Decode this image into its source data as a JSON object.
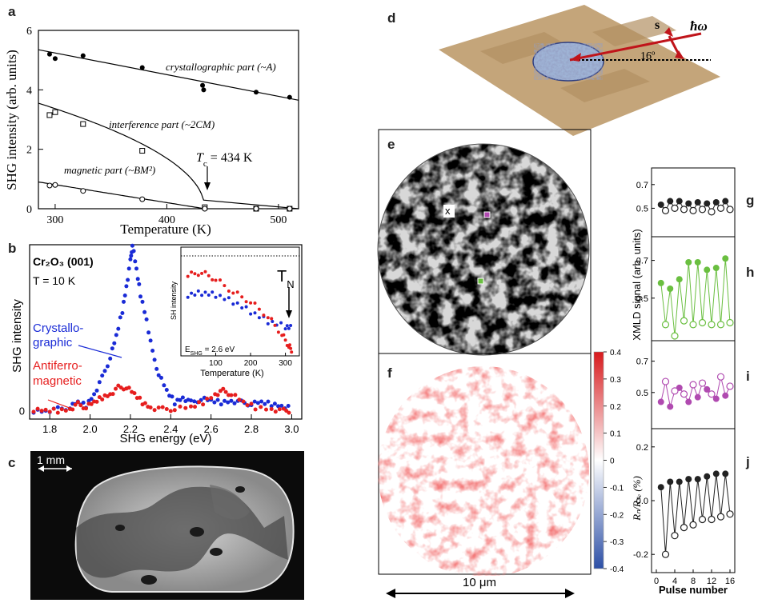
{
  "panel_labels": {
    "a": "a",
    "b": "b",
    "c": "c",
    "d": "d",
    "e": "e",
    "f": "f",
    "g": "g",
    "h": "h",
    "i": "i",
    "j": "j"
  },
  "chart_data": [
    {
      "panel": "a",
      "type": "scatter",
      "xlabel": "Temperature  (K)",
      "ylabel": "SHG intensity  (arb. units)",
      "xlim": [
        285,
        518
      ],
      "ylim": [
        0,
        6
      ],
      "xticks": [
        "300",
        "400",
        "500"
      ],
      "yticks": [
        "0",
        "2",
        "4",
        "6"
      ],
      "annotations": {
        "crys": "crystallographic part (~A)",
        "interf": "interference part (~2CM)",
        "magn": "magnetic part (~BM²)",
        "tc": "T",
        "tc_sub": "c",
        "tc_val": " = 434 K"
      },
      "series": [
        {
          "points": [
            [
              295,
              5.2
            ],
            [
              300,
              5.05
            ],
            [
              325,
              5.15
            ],
            [
              378,
              4.75
            ],
            [
              432,
              4.15
            ],
            [
              433,
              4.0
            ],
            [
              480,
              3.92
            ],
            [
              510,
              3.75
            ]
          ]
        },
        {
          "points": [
            [
              295,
              3.15
            ],
            [
              300,
              3.25
            ],
            [
              325,
              2.85
            ],
            [
              378,
              1.95
            ],
            [
              434,
              0.05
            ],
            [
              480,
              0.0
            ],
            [
              510,
              0.0
            ]
          ]
        },
        {
          "points": [
            [
              295,
              0.78
            ],
            [
              300,
              0.8
            ],
            [
              325,
              0.6
            ],
            [
              378,
              0.32
            ],
            [
              434,
              0.0
            ],
            [
              480,
              0.0
            ],
            [
              510,
              0.0
            ]
          ]
        }
      ]
    },
    {
      "panel": "b",
      "type": "scatter",
      "xlabel": "SHG energy  (eV)",
      "ylabel": "SHG intensity",
      "xlim": [
        1.7,
        3.05
      ],
      "ylim": [
        -0.05,
        1.0
      ],
      "xticks": [
        "1.8",
        "2.0",
        "2.2",
        "2.4",
        "2.6",
        "2.8",
        "3.0"
      ],
      "yticks": [
        "0"
      ],
      "text": {
        "material": "Cr₂O₃ (001)",
        "temp": "T = 10 K",
        "cryst1": "Crystallo-",
        "cryst2": "graphic",
        "anti1": "Antiferro-",
        "anti2": "magnetic"
      },
      "series": [
        {
          "name": "Crystallographic",
          "color": "#1a2bd6",
          "points": [
            [
              1.72,
              0.0
            ],
            [
              1.78,
              0.0
            ],
            [
              1.84,
              0.01
            ],
            [
              1.9,
              0.02
            ],
            [
              1.94,
              0.05
            ],
            [
              1.98,
              0.03
            ],
            [
              2.02,
              0.1
            ],
            [
              2.06,
              0.2
            ],
            [
              2.1,
              0.32
            ],
            [
              2.13,
              0.45
            ],
            [
              2.16,
              0.6
            ],
            [
              2.18,
              0.75
            ],
            [
              2.2,
              0.9
            ],
            [
              2.21,
              1.0
            ],
            [
              2.23,
              0.85
            ],
            [
              2.25,
              0.7
            ],
            [
              2.28,
              0.55
            ],
            [
              2.31,
              0.35
            ],
            [
              2.34,
              0.22
            ],
            [
              2.38,
              0.12
            ],
            [
              2.42,
              0.05
            ],
            [
              2.46,
              0.08
            ],
            [
              2.5,
              0.05
            ],
            [
              2.55,
              0.07
            ],
            [
              2.6,
              0.06
            ],
            [
              2.65,
              0.05
            ],
            [
              2.7,
              0.06
            ],
            [
              2.75,
              0.05
            ],
            [
              2.8,
              0.04
            ],
            [
              2.85,
              0.05
            ],
            [
              2.9,
              0.04
            ],
            [
              2.95,
              0.03
            ],
            [
              3.0,
              0.02
            ]
          ]
        },
        {
          "name": "Antiferromagnetic",
          "color": "#e61e1e",
          "points": [
            [
              1.72,
              0.0
            ],
            [
              1.78,
              0.0
            ],
            [
              1.84,
              0.0
            ],
            [
              1.9,
              0.01
            ],
            [
              1.94,
              0.04
            ],
            [
              1.98,
              0.02
            ],
            [
              2.02,
              0.05
            ],
            [
              2.06,
              0.08
            ],
            [
              2.1,
              0.1
            ],
            [
              2.14,
              0.14
            ],
            [
              2.18,
              0.14
            ],
            [
              2.22,
              0.1
            ],
            [
              2.26,
              0.05
            ],
            [
              2.3,
              0.02
            ],
            [
              2.36,
              0.01
            ],
            [
              2.42,
              0.01
            ],
            [
              2.5,
              0.02
            ],
            [
              2.56,
              0.05
            ],
            [
              2.62,
              0.1
            ],
            [
              2.66,
              0.12
            ],
            [
              2.7,
              0.1
            ],
            [
              2.76,
              0.05
            ],
            [
              2.82,
              0.02
            ],
            [
              2.9,
              0.01
            ],
            [
              2.96,
              0.0
            ],
            [
              3.0,
              0.0
            ]
          ]
        }
      ],
      "inset": {
        "xlabel": "Temperature (K)",
        "ylabel": "SH intensity",
        "xticks": [
          "100",
          "200",
          "300"
        ],
        "xlim": [
          0,
          340
        ],
        "ylim": [
          0,
          1
        ],
        "note": "E",
        "note_sub": "SHG",
        "note_val": " = 2.6 eV",
        "tn": "T",
        "tn_sub": "N",
        "series": [
          {
            "color": "#1a2bd6",
            "points": [
              [
                20,
                0.62
              ],
              [
                60,
                0.64
              ],
              [
                100,
                0.62
              ],
              [
                150,
                0.55
              ],
              [
                200,
                0.45
              ],
              [
                250,
                0.35
              ],
              [
                300,
                0.3
              ],
              [
                320,
                0.28
              ]
            ]
          },
          {
            "color": "#e61e1e",
            "points": [
              [
                20,
                0.82
              ],
              [
                60,
                0.85
              ],
              [
                100,
                0.78
              ],
              [
                150,
                0.65
              ],
              [
                200,
                0.55
              ],
              [
                250,
                0.4
              ],
              [
                290,
                0.22
              ],
              [
                310,
                0.1
              ],
              [
                320,
                0.05
              ]
            ]
          }
        ]
      }
    },
    {
      "panel": "g-j",
      "type": "line",
      "xlabel": "Pulse number",
      "ylabel_top": "XMLD signal (arb. units)",
      "ylabel_bottom": "Rₙ/Rₛₑ (%)",
      "xticks": [
        "0",
        "4",
        "8",
        "12",
        "16"
      ],
      "xlim": [
        0,
        16
      ],
      "subplots": [
        {
          "label": "g",
          "color": "#222222",
          "ylim": [
            0.3,
            0.8
          ],
          "yticks": [
            "0.5",
            "0.7"
          ],
          "filled": [
            [
              1,
              0.53
            ],
            [
              3,
              0.56
            ],
            [
              5,
              0.56
            ],
            [
              7,
              0.54
            ],
            [
              9,
              0.55
            ],
            [
              11,
              0.54
            ],
            [
              13,
              0.55
            ],
            [
              15,
              0.56
            ]
          ],
          "open": [
            [
              2,
              0.48
            ],
            [
              4,
              0.5
            ],
            [
              6,
              0.49
            ],
            [
              8,
              0.48
            ],
            [
              10,
              0.49
            ],
            [
              12,
              0.47
            ],
            [
              14,
              0.5
            ],
            [
              16,
              0.49
            ]
          ]
        },
        {
          "label": "h",
          "color": "#6abf40",
          "ylim": [
            0.3,
            0.8
          ],
          "yticks": [
            "0.5",
            "0.7"
          ],
          "filled": [
            [
              1,
              0.58
            ],
            [
              3,
              0.55
            ],
            [
              5,
              0.6
            ],
            [
              7,
              0.69
            ],
            [
              9,
              0.69
            ],
            [
              11,
              0.65
            ],
            [
              13,
              0.66
            ],
            [
              15,
              0.71
            ]
          ],
          "open": [
            [
              2,
              0.36
            ],
            [
              4,
              0.3
            ],
            [
              6,
              0.38
            ],
            [
              8,
              0.36
            ],
            [
              10,
              0.37
            ],
            [
              12,
              0.36
            ],
            [
              14,
              0.36
            ],
            [
              16,
              0.37
            ]
          ]
        },
        {
          "label": "i",
          "color": "#b04ab0",
          "ylim": [
            0.3,
            0.8
          ],
          "yticks": [
            "0.5",
            "0.7"
          ],
          "filled": [
            [
              1,
              0.44
            ],
            [
              3,
              0.41
            ],
            [
              5,
              0.53
            ],
            [
              7,
              0.44
            ],
            [
              9,
              0.47
            ],
            [
              11,
              0.52
            ],
            [
              13,
              0.46
            ],
            [
              15,
              0.48
            ]
          ],
          "open": [
            [
              2,
              0.57
            ],
            [
              4,
              0.51
            ],
            [
              6,
              0.49
            ],
            [
              8,
              0.55
            ],
            [
              10,
              0.56
            ],
            [
              12,
              0.49
            ],
            [
              14,
              0.6
            ],
            [
              16,
              0.54
            ]
          ]
        },
        {
          "label": "j",
          "color": "#222222",
          "ylim": [
            -0.25,
            0.25
          ],
          "yticks": [
            "-0.2",
            "0.0",
            "0.2"
          ],
          "filled": [
            [
              1,
              0.05
            ],
            [
              3,
              0.07
            ],
            [
              5,
              0.07
            ],
            [
              7,
              0.08
            ],
            [
              9,
              0.08
            ],
            [
              11,
              0.09
            ],
            [
              13,
              0.1
            ],
            [
              15,
              0.1
            ]
          ],
          "open": [
            [
              2,
              -0.2
            ],
            [
              4,
              -0.13
            ],
            [
              6,
              -0.1
            ],
            [
              8,
              -0.09
            ],
            [
              10,
              -0.07
            ],
            [
              12,
              -0.07
            ],
            [
              14,
              -0.06
            ],
            [
              16,
              -0.05
            ]
          ]
        }
      ]
    }
  ],
  "panel_c": {
    "scale": "1 mm"
  },
  "panel_d": {
    "s": "s",
    "hw": "ħω",
    "angle": "16º"
  },
  "panel_e": {
    "marker": "x"
  },
  "panel_f": {
    "colorbar_ticks": [
      "0.4",
      "0.3",
      "0.2",
      "0.1",
      "0",
      "-0.1",
      "-0.2",
      "-0.3",
      "-0.4"
    ]
  },
  "scale_bar": {
    "label": "10 μm"
  }
}
